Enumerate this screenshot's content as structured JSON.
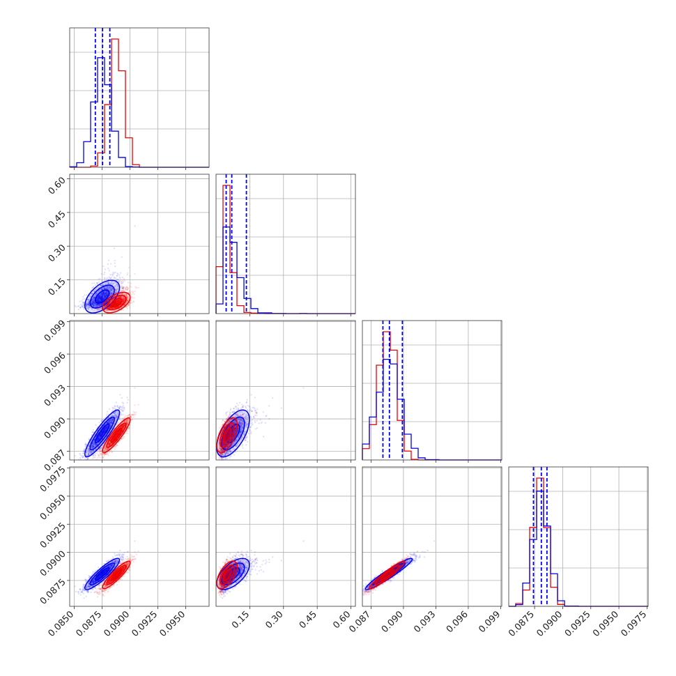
{
  "colors": {
    "series_a": "#0000ee",
    "series_b": "#ee0000",
    "grid": "#b0b0b0"
  },
  "chart_data": {
    "type": "corner",
    "title": "",
    "grid": true,
    "quantile_lines": "dashed",
    "series": [
      {
        "color": "#0000ee",
        "centers": [
          0.08755,
          0.07,
          0.0887,
          0.0881
        ],
        "spread": [
          0.0008,
          0.05,
          0.0011,
          0.0007
        ],
        "quantiles": [
          [
            0.0869,
            0.08755,
            0.0882
          ],
          [
            0.045,
            0.07,
            0.135
          ],
          [
            0.0881,
            0.0887,
            0.0899
          ],
          [
            0.0874,
            0.0881,
            0.0886
          ]
        ],
        "density": 0.95
      },
      {
        "color": "#ee0000",
        "centers": [
          0.0888,
          0.045,
          0.0885,
          0.088
        ],
        "spread": [
          0.0006,
          0.015,
          0.0008,
          0.0006
        ],
        "quantiles": [
          null,
          null,
          null,
          null
        ],
        "density": 0.95
      }
    ],
    "correlation": [
      [
        1,
        0.55,
        0.9,
        0.9
      ],
      [
        0.55,
        1,
        0.6,
        0.6
      ],
      [
        0.9,
        0.6,
        1,
        0.95
      ],
      [
        0.9,
        0.6,
        0.95,
        1
      ]
    ],
    "dimensions": [
      {
        "range": [
          0.0846,
          0.0971
        ],
        "ticks": [
          "0.0850",
          "0.0875",
          "0.0900",
          "0.0925",
          "0.0950"
        ],
        "tick_values": [
          0.085,
          0.0875,
          0.09,
          0.0925,
          0.095
        ]
      },
      {
        "range": [
          0.0,
          0.62
        ],
        "ticks": [
          "0.15",
          "0.30",
          "0.45",
          "0.60"
        ],
        "tick_values": [
          0.15,
          0.3,
          0.45,
          0.6
        ]
      },
      {
        "range": [
          0.0862,
          0.0991
        ],
        "ticks": [
          "0.087",
          "0.090",
          "0.093",
          "0.096",
          "0.099"
        ],
        "tick_values": [
          0.087,
          0.09,
          0.093,
          0.096,
          0.099
        ]
      },
      {
        "range": [
          0.0852,
          0.0976
        ],
        "ticks": [
          "0.0875",
          "0.0900",
          "0.0925",
          "0.0950",
          "0.0975"
        ],
        "tick_values": [
          0.0875,
          0.09,
          0.0925,
          0.095,
          0.0975
        ]
      }
    ],
    "x_axis_ticks": [
      [
        "0.0850",
        "0.0875",
        "0.0900",
        "0.0925",
        "0.0950"
      ],
      [
        "0.15",
        "0.30",
        "0.45",
        "0.60"
      ],
      [
        "0.087",
        "0.090",
        "0.093",
        "0.096",
        "0.099"
      ],
      [
        "0.0875",
        "0.0900",
        "0.0925",
        "0.0950",
        "0.0975"
      ]
    ],
    "y_axis_ticks": [
      [],
      [
        "0.15",
        "0.30",
        "0.45",
        "0.60"
      ],
      [
        "0.087",
        "0.090",
        "0.093",
        "0.096",
        "0.099"
      ],
      [
        "0.0875",
        "0.0900",
        "0.0925",
        "0.0950",
        "0.0975"
      ]
    ]
  }
}
